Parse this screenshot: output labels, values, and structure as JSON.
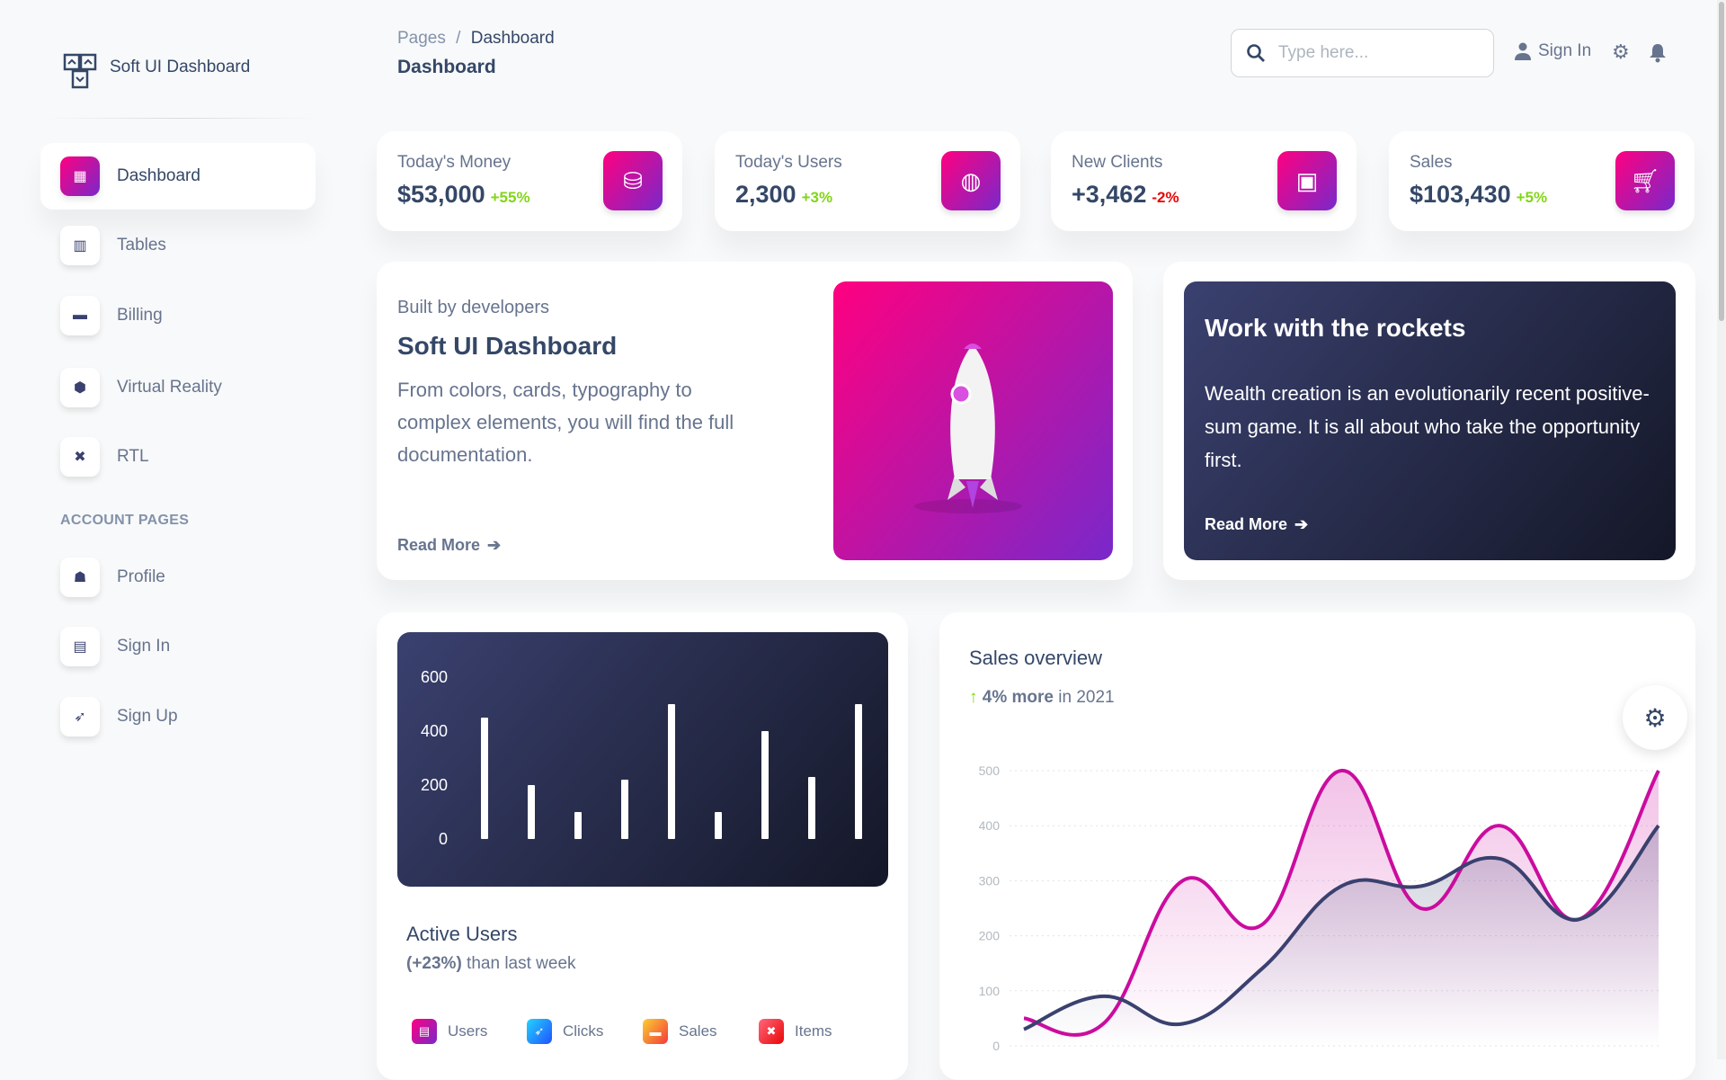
{
  "brand": {
    "name": "Soft UI Dashboard"
  },
  "header": {
    "breadcrumb": [
      "Pages",
      "Dashboard"
    ],
    "title": "Dashboard",
    "search_placeholder": "Type here...",
    "sign_in": "Sign In"
  },
  "sidebar": {
    "items": [
      {
        "label": "Dashboard",
        "icon": "shop-icon",
        "active": true
      },
      {
        "label": "Tables",
        "icon": "chart-bar-icon"
      },
      {
        "label": "Billing",
        "icon": "credit-card-icon"
      },
      {
        "label": "Virtual Reality",
        "icon": "box-3d-icon"
      },
      {
        "label": "RTL",
        "icon": "settings-tools-icon"
      }
    ],
    "section": "ACCOUNT PAGES",
    "account_items": [
      {
        "label": "Profile",
        "icon": "customer-support-icon"
      },
      {
        "label": "Sign In",
        "icon": "document-icon"
      },
      {
        "label": "Sign Up",
        "icon": "rocket-icon"
      }
    ]
  },
  "stats": [
    {
      "label": "Today's Money",
      "value": "$53,000",
      "change": "+55%",
      "trend": "up",
      "icon": "money-coins-icon"
    },
    {
      "label": "Today's Users",
      "value": "2,300",
      "change": "+3%",
      "trend": "up",
      "icon": "world-icon"
    },
    {
      "label": "New Clients",
      "value": "+3,462",
      "change": "-2%",
      "trend": "down",
      "icon": "paper-diploma-icon"
    },
    {
      "label": "Sales",
      "value": "$103,430",
      "change": "+5%",
      "trend": "up",
      "icon": "cart-icon"
    }
  ],
  "promo": {
    "kicker": "Built by developers",
    "title": "Soft UI Dashboard",
    "text": "From colors, cards, typography to complex elements, you will find the full documentation.",
    "link": "Read More"
  },
  "rockets": {
    "title": "Work with the rockets",
    "text": "Wealth creation is an evolutionarily recent positive-sum game. It is all about who take the opportunity first.",
    "link": "Read More"
  },
  "active_users": {
    "title": "Active Users",
    "change": "(+23%)",
    "change_suffix": " than last week",
    "legend": [
      {
        "label": "Users",
        "color": "#cb0c9f"
      },
      {
        "label": "Clicks",
        "color": "#2152ff"
      },
      {
        "label": "Sales",
        "color": "#f53939"
      },
      {
        "label": "Items",
        "color": "#ea0606"
      }
    ]
  },
  "sales_overview": {
    "title": "Sales overview",
    "change": "4% more",
    "suffix": " in 2021"
  },
  "colors": {
    "primary": "#cb0c9f",
    "dark": "#344767",
    "success": "#82d616",
    "danger": "#ea0606"
  },
  "chart_data": [
    {
      "type": "bar",
      "yticks": [
        0,
        200,
        400,
        600
      ],
      "ylim": [
        0,
        600
      ],
      "values": [
        450,
        200,
        100,
        220,
        500,
        100,
        400,
        230,
        500
      ],
      "grid": false
    },
    {
      "type": "line",
      "yticks": [
        0,
        100,
        200,
        300,
        400,
        500
      ],
      "ylim": [
        0,
        500
      ],
      "grid": true,
      "series": [
        {
          "color": "#cb0c9f",
          "values": [
            50,
            40,
            300,
            220,
            500,
            250,
            400,
            230,
            500
          ]
        },
        {
          "color": "#3A416F",
          "values": [
            30,
            90,
            40,
            140,
            290,
            290,
            340,
            230,
            400
          ]
        }
      ]
    }
  ]
}
